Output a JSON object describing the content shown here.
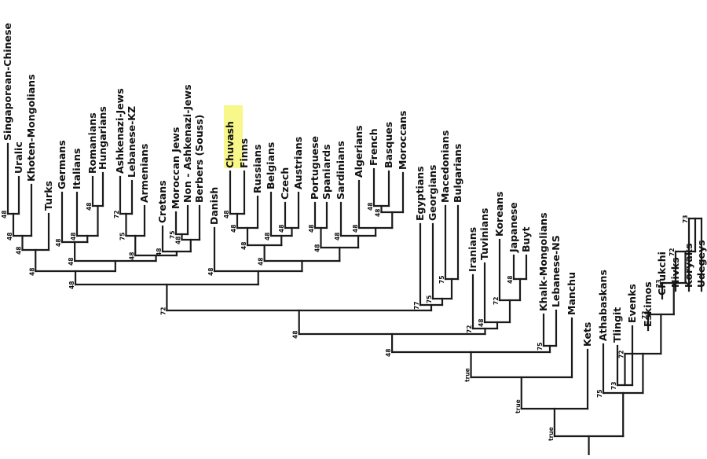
{
  "highlight": {
    "label": "Chuvash",
    "color": "#f7f78a"
  },
  "populations": [
    "Singaporean-Chinese",
    "Uralic",
    "Khoten-Mongolians",
    "Turks",
    "Germans",
    "Italians",
    "Romanians",
    "Hungarians",
    "Ashkenazi-Jews",
    "Lebanese-KZ",
    "Armenians",
    "Cretans",
    "Moroccan Jews",
    "Non - Ashkenazi-Jews",
    "Berbers (Souss)",
    "Danish",
    "Chuvash",
    "Finns",
    "Russians",
    "Belgians",
    "Czech",
    "Austrians",
    "Portuguese",
    "Spaniards",
    "Sardinians",
    "Algerians",
    "French",
    "Basques",
    "Moroccans",
    "Egyptians",
    "Georgians",
    "Macedonians",
    "Bulgarians",
    "Iranians",
    "Tuvinians",
    "Koreans",
    "Japanese",
    "Buyt",
    "Khalk-Mongolians",
    "Lebanese-NS",
    "Manchu",
    "Kets",
    "Athabaskans",
    "Tlingit",
    "Evenks",
    "Eskimos",
    "Chukchi",
    "Nivks",
    "Koryaks",
    "Udegeys"
  ],
  "support_values": [
    "48",
    "48",
    "48",
    "48",
    "48",
    "48",
    "72",
    "75",
    "75",
    "48",
    "48",
    "48",
    "48",
    "48",
    "48",
    "48",
    "48",
    "48",
    "48",
    "48",
    "48",
    "48",
    "48",
    "48",
    "48",
    "48",
    "48",
    "48",
    "75",
    "75",
    "77",
    "72",
    "48",
    "72",
    "48",
    "72",
    "48",
    "75",
    "48",
    "73",
    "72",
    "73",
    "72",
    "73",
    "72",
    "75"
  ]
}
